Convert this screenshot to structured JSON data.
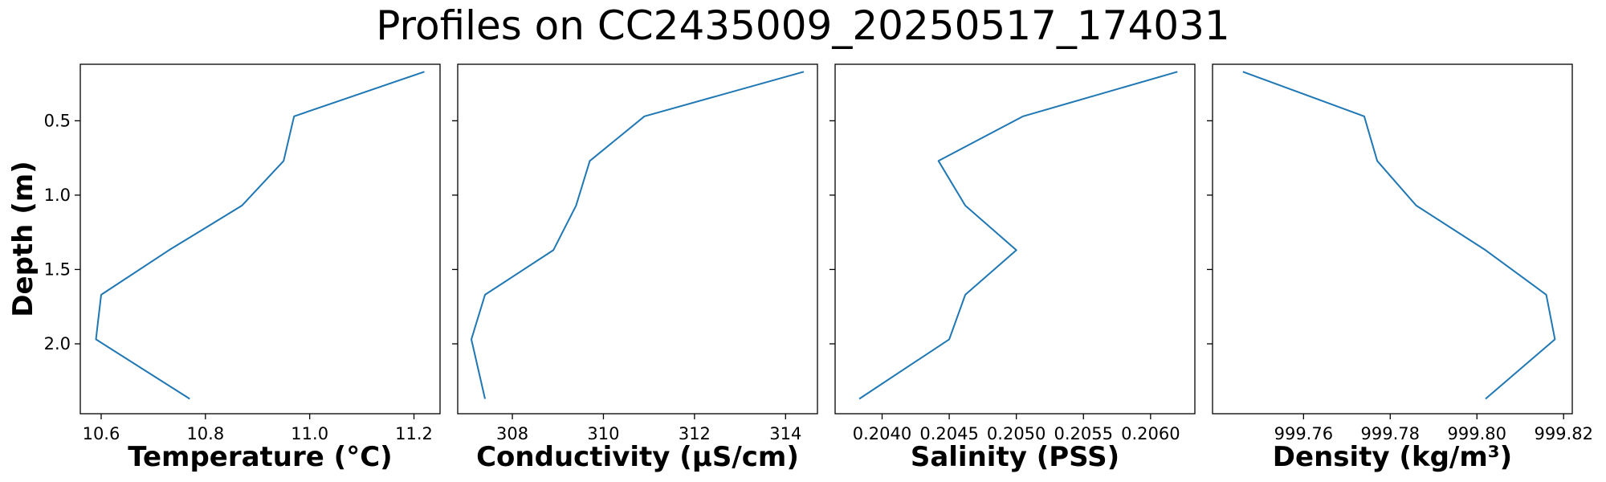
{
  "title": "Profiles on CC2435009_20250517_174031",
  "shared_y": {
    "label": "Depth (m)",
    "ticks": [
      0.5,
      1.0,
      1.5,
      2.0
    ],
    "tick_labels": [
      "0.5",
      "1.0",
      "1.5",
      "2.0"
    ],
    "ylim": [
      2.47,
      0.12
    ],
    "inverted": true
  },
  "line_color": "#1f77b4",
  "chart_data": [
    {
      "type": "line",
      "xlabel": "Temperature (°C)",
      "xlim": [
        10.56,
        11.25
      ],
      "xticks": [
        10.6,
        10.8,
        11.0,
        11.2
      ],
      "xtick_labels": [
        "10.6",
        "10.8",
        "11.0",
        11.2
      ],
      "x": [
        11.22,
        10.97,
        10.95,
        10.87,
        10.73,
        10.6,
        10.59,
        10.77
      ],
      "y": [
        0.17,
        0.47,
        0.77,
        1.07,
        1.37,
        1.67,
        1.97,
        2.37
      ]
    },
    {
      "type": "line",
      "xlabel": "Conductivity (µS/cm)",
      "xlim": [
        306.8,
        314.7
      ],
      "xticks": [
        308,
        310,
        312,
        314
      ],
      "xtick_labels": [
        "308",
        "310",
        "312",
        "314"
      ],
      "x": [
        314.4,
        310.9,
        309.7,
        309.4,
        308.9,
        307.4,
        307.1,
        307.4
      ],
      "y": [
        0.17,
        0.47,
        0.77,
        1.07,
        1.37,
        1.67,
        1.97,
        2.37
      ]
    },
    {
      "type": "line",
      "xlabel": "Salinity (PSS)",
      "xlim": [
        0.20365,
        0.20633
      ],
      "xticks": [
        0.204,
        0.2045,
        0.205,
        0.2055,
        0.206
      ],
      "xtick_labels": [
        "0.2040",
        "0.2045",
        "0.2050",
        "0.2055",
        "0.2060"
      ],
      "x": [
        0.2062,
        0.20505,
        0.20442,
        0.20462,
        0.205,
        0.20462,
        0.2045,
        0.20383
      ],
      "y": [
        0.17,
        0.47,
        0.77,
        1.07,
        1.37,
        1.67,
        1.97,
        2.37
      ]
    },
    {
      "type": "line",
      "xlabel": "Density (kg/m³)",
      "xlim": [
        999.739,
        999.822
      ],
      "xticks": [
        999.76,
        999.78,
        999.8,
        999.82
      ],
      "xtick_labels": [
        "999.76",
        "999.78",
        "999.80",
        "999.82"
      ],
      "x": [
        999.746,
        999.774,
        999.777,
        999.786,
        999.802,
        999.816,
        999.818,
        999.802
      ],
      "y": [
        0.17,
        0.47,
        0.77,
        1.07,
        1.37,
        1.67,
        1.97,
        2.37
      ]
    }
  ]
}
